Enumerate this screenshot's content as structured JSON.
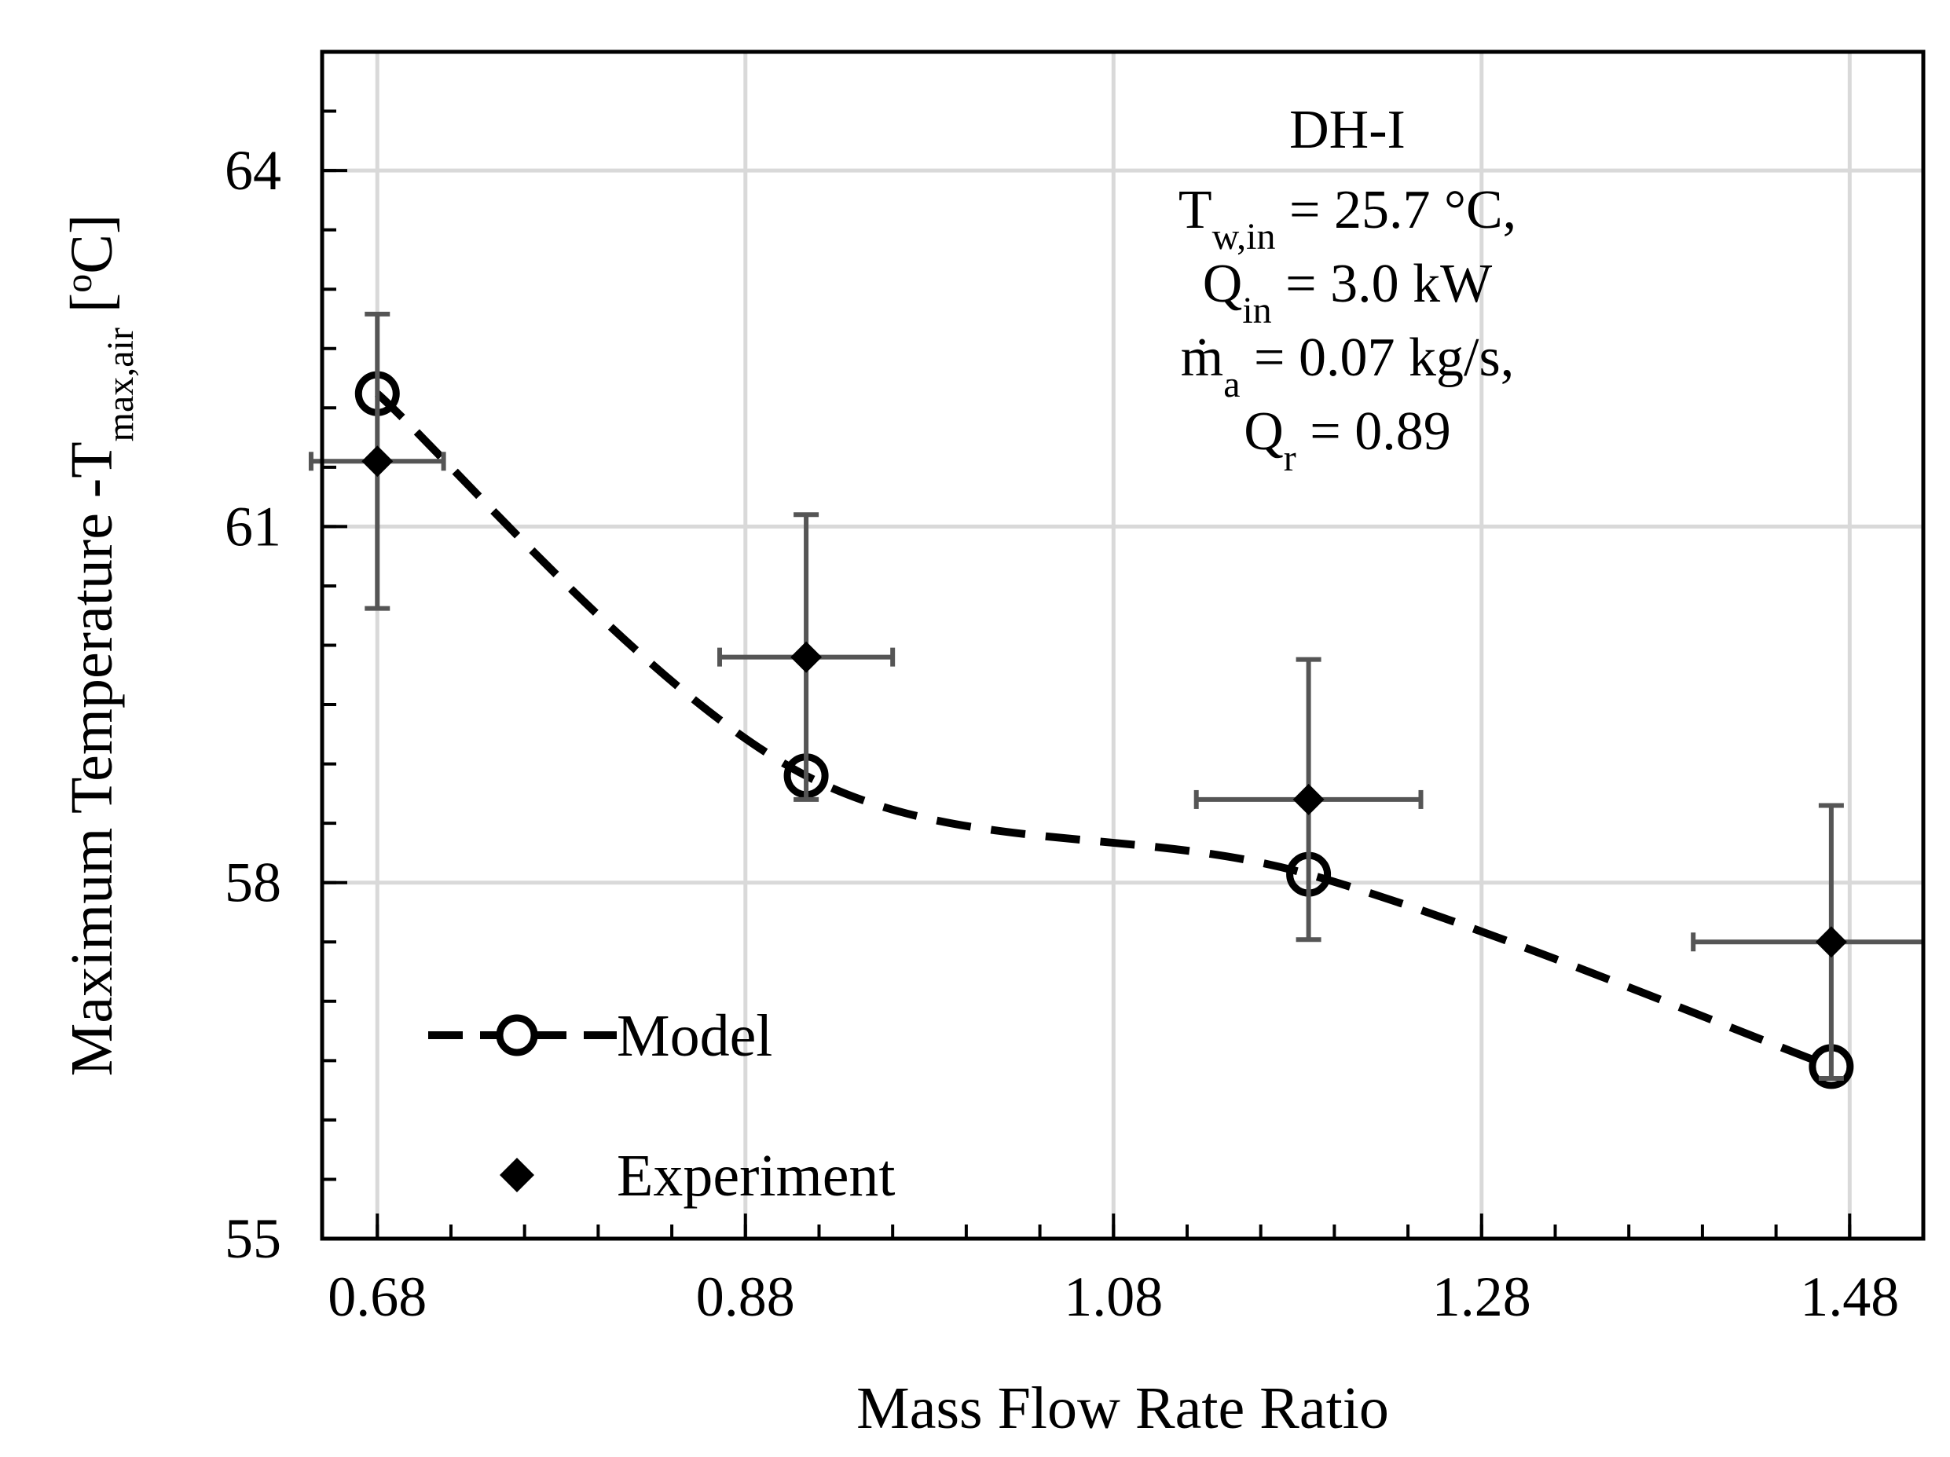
{
  "chart_data": {
    "type": "scatter",
    "title": "",
    "xlabel": "Mass Flow Rate Ratio",
    "ylabel": {
      "main": "Maximum Temperature -T",
      "sub": "max,air",
      "unit": " [",
      "unit_sup": "o",
      "unit_end": "C]"
    },
    "xlim": [
      0.65,
      1.52
    ],
    "ylim": [
      55,
      65
    ],
    "x_ticks": [
      0.68,
      0.88,
      1.08,
      1.28,
      1.48
    ],
    "x_tick_labels": [
      "0.68",
      "0.88",
      "1.08",
      "1.28",
      "1.48"
    ],
    "y_ticks": [
      55,
      58,
      61,
      64
    ],
    "y_tick_labels": [
      "55",
      "58",
      "61",
      "64"
    ],
    "x_minor_step": 0.04,
    "y_minor_step": 0.5,
    "grid": true,
    "legend_position": "bottom-left",
    "series": [
      {
        "name": "Model",
        "style": "dashed-line-open-circle",
        "x": [
          0.68,
          0.913,
          1.186,
          1.47
        ],
        "y": [
          62.12,
          58.9,
          58.07,
          56.45
        ]
      },
      {
        "name": "Experiment",
        "style": "filled-diamond-errorbars",
        "x": [
          0.68,
          0.913,
          1.186,
          1.47
        ],
        "y": [
          61.55,
          59.9,
          58.7,
          57.5
        ],
        "xerr": [
          0.036,
          0.047,
          0.061,
          0.075
        ],
        "yerr": [
          1.24,
          1.2,
          1.18,
          1.15
        ]
      }
    ],
    "annotation": [
      {
        "text": "DH-I"
      },
      {
        "text": "T",
        "sub": "w,in",
        "rest": " = 25.7 °C,"
      },
      {
        "text": "Q",
        "sub": "in",
        "rest": " = 3.0 kW"
      },
      {
        "text": "ṁ",
        "sub": "a",
        "rest": " = 0.07 kg/s,"
      },
      {
        "text": "Q",
        "sub": "r",
        "rest": " = 0.89"
      }
    ]
  }
}
